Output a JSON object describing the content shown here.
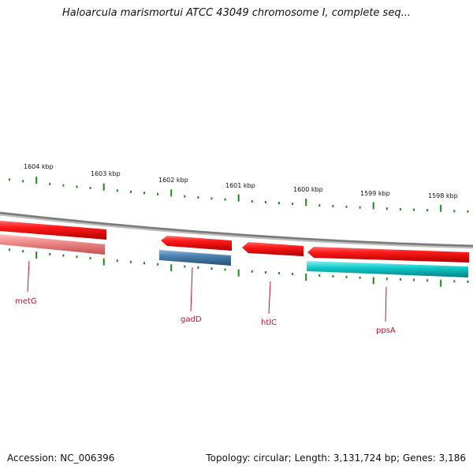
{
  "title": "Haloarcula marismortui ATCC 43049 chromosome I, complete seq...",
  "footer": {
    "accession": "Accession: NC_006396",
    "summary": "Topology: circular; Length: 3,131,724 bp; Genes: 3,186"
  },
  "colors": {
    "backbone": "#888888",
    "tick": "#1a8a1a",
    "gene_forward": "#ee1111",
    "gene_forward_light": "#ee8a8a",
    "gene_blue": "#4a7fb0",
    "gene_cyan": "#11cccc",
    "gene_label": "#c8102e"
  },
  "kbp_labels": [
    "1604 kbp",
    "1603 kbp",
    "1602 kbp",
    "1601 kbp",
    "1600 kbp",
    "1599 kbp",
    "1598 kbp"
  ],
  "genes": [
    "metG",
    "gadD",
    "htlC",
    "ppsA"
  ]
}
